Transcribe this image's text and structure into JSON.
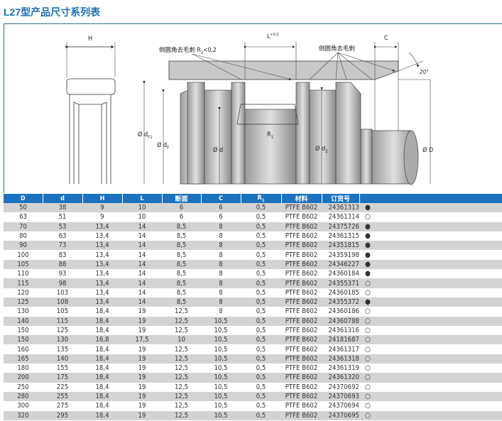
{
  "title": "L27型产品尺寸系列表",
  "diagram": {
    "label_H": "H",
    "label_L": "L",
    "label_L_tol": "+0,2",
    "label_C": "C",
    "label_angle": "20°",
    "note_left": "倒圆角去毛刺 R",
    "note_left_sub": "2",
    "note_left_val": "<0,2",
    "note_right": "倒圆角去毛刺",
    "label_dF1": "Ø d",
    "label_dF1_sub": "F1",
    "label_dF": "Ø d",
    "label_dF_sub": "F",
    "label_d": "Ø d",
    "label_R1": "R",
    "label_R1_sub": "1",
    "label_d2": "Ø d",
    "label_d2_sub": "2",
    "label_D": "Ø D"
  },
  "table": {
    "headers": [
      "D",
      "d",
      "H",
      "L",
      "断面",
      "C",
      "R",
      "材料",
      "订货号",
      ""
    ],
    "header_R_sub": "1",
    "rows": [
      [
        "50",
        "38",
        "9",
        "10",
        "6",
        "6",
        "0,5",
        "PTFE B602",
        "24361313",
        "●"
      ],
      [
        "63",
        "51",
        "9",
        "10",
        "6",
        "6",
        "0,5",
        "PTFE B602",
        "24361314",
        "○"
      ],
      [
        "70",
        "53",
        "13,4",
        "14",
        "8,5",
        "8",
        "0,5",
        "PTFE B602",
        "24375726",
        "●"
      ],
      [
        "80",
        "63",
        "13,4",
        "14",
        "8,5",
        "8",
        "0,5",
        "PTFE B602",
        "24361315",
        "●"
      ],
      [
        "90",
        "73",
        "13,4",
        "14",
        "8,5",
        "8",
        "0,5",
        "PTFE B602",
        "24351815",
        "●"
      ],
      [
        "100",
        "83",
        "13,4",
        "14",
        "8,5",
        "8",
        "0,5",
        "PTFE B602",
        "24359198",
        "●"
      ],
      [
        "105",
        "88",
        "13,4",
        "14",
        "8,5",
        "8",
        "0,5",
        "PTFE B602",
        "24346227",
        "●"
      ],
      [
        "110",
        "93",
        "13,4",
        "14",
        "8,5",
        "8",
        "0,5",
        "PTFE B602",
        "24360184",
        "●"
      ],
      [
        "115",
        "98",
        "13,4",
        "14",
        "8,5",
        "8",
        "0,5",
        "PTFE B602",
        "24355371",
        "○"
      ],
      [
        "120",
        "103",
        "13,4",
        "14",
        "8,5",
        "8",
        "0,5",
        "PTFE B602",
        "24360185",
        "○"
      ],
      [
        "125",
        "108",
        "13,4",
        "14",
        "8,5",
        "8",
        "0,5",
        "PTFE B602",
        "24355372",
        "●"
      ],
      [
        "130",
        "105",
        "18,4",
        "19",
        "12,5",
        "8",
        "0,5",
        "PTFE B602",
        "24360186",
        "○"
      ],
      [
        "140",
        "115",
        "18,4",
        "19",
        "12,5",
        "10,5",
        "0,5",
        "PTFE B602",
        "24360788",
        "○"
      ],
      [
        "150",
        "125",
        "18,4",
        "19",
        "12,5",
        "10,5",
        "0,5",
        "PTFE B602",
        "24361316",
        "○"
      ],
      [
        "150",
        "130",
        "16,8",
        "17,5",
        "10",
        "10,5",
        "0,5",
        "PTFE B602",
        "24181687",
        "○"
      ],
      [
        "160",
        "135",
        "18,4",
        "19",
        "12,5",
        "10,5",
        "0,5",
        "PTFE B602",
        "24361317",
        "○"
      ],
      [
        "165",
        "140",
        "18,4",
        "19",
        "12,5",
        "10,5",
        "0,5",
        "PTFE B602",
        "24361318",
        "○"
      ],
      [
        "180",
        "155",
        "18,4",
        "19",
        "12,5",
        "10,5",
        "0,5",
        "PTFE B602",
        "24361319",
        "○"
      ],
      [
        "200",
        "175",
        "18,4",
        "19",
        "12,5",
        "10,5",
        "0,5",
        "PTFE B602",
        "24361320",
        "○"
      ],
      [
        "250",
        "225",
        "18,4",
        "19",
        "12,5",
        "10,5",
        "0,5",
        "PTFE B602",
        "24370692",
        "○"
      ],
      [
        "280",
        "255",
        "18,4",
        "19",
        "12,5",
        "10,5",
        "0,5",
        "PTFE B602",
        "24370693",
        "○"
      ],
      [
        "300",
        "275",
        "18,4",
        "19",
        "12,5",
        "10,5",
        "0,5",
        "PTFE B602",
        "24370694",
        "○"
      ],
      [
        "320",
        "295",
        "18,4",
        "19",
        "12,5",
        "10,5",
        "0,5",
        "PTFE B602",
        "24370695",
        "○"
      ]
    ]
  },
  "colors": {
    "accent": "#1a72c0",
    "row_alt": "#d3d3d3"
  }
}
